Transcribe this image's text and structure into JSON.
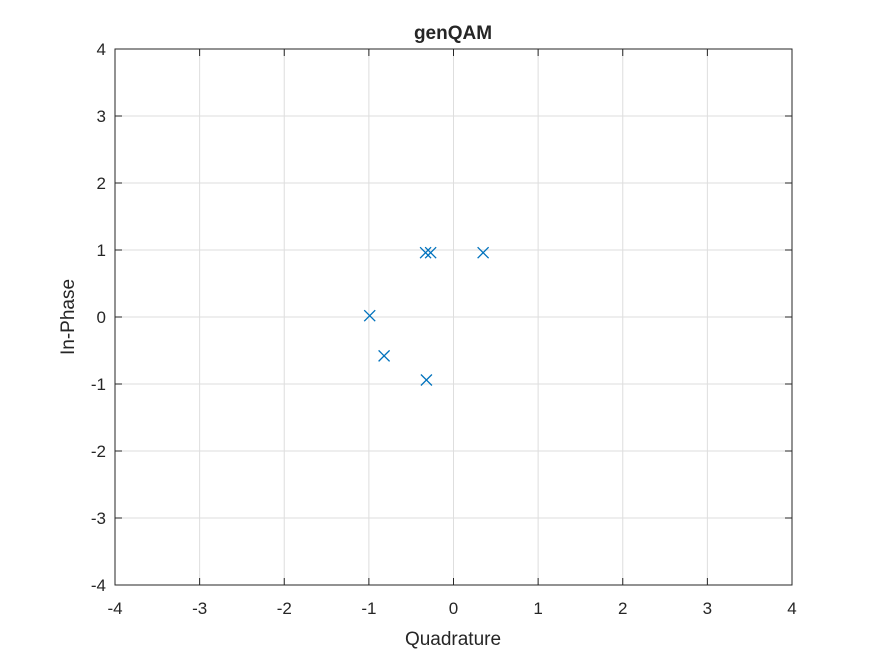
{
  "chart_data": {
    "type": "scatter",
    "title": "genQAM",
    "xlabel": "Quadrature",
    "ylabel": "In-Phase",
    "xlim": [
      -4,
      4
    ],
    "ylim": [
      -4,
      4
    ],
    "xticks": [
      -4,
      -3,
      -2,
      -1,
      0,
      1,
      2,
      3,
      4
    ],
    "yticks": [
      -4,
      -3,
      -2,
      -1,
      0,
      1,
      2,
      3,
      4
    ],
    "grid": true,
    "marker": "x",
    "series": [
      {
        "color": "#0072BD",
        "points": [
          {
            "x": -0.99,
            "y": 0.02
          },
          {
            "x": -0.82,
            "y": -0.58
          },
          {
            "x": -0.33,
            "y": 0.96
          },
          {
            "x": -0.27,
            "y": 0.96
          },
          {
            "x": 0.35,
            "y": 0.96
          },
          {
            "x": -0.32,
            "y": -0.94
          }
        ]
      }
    ]
  }
}
